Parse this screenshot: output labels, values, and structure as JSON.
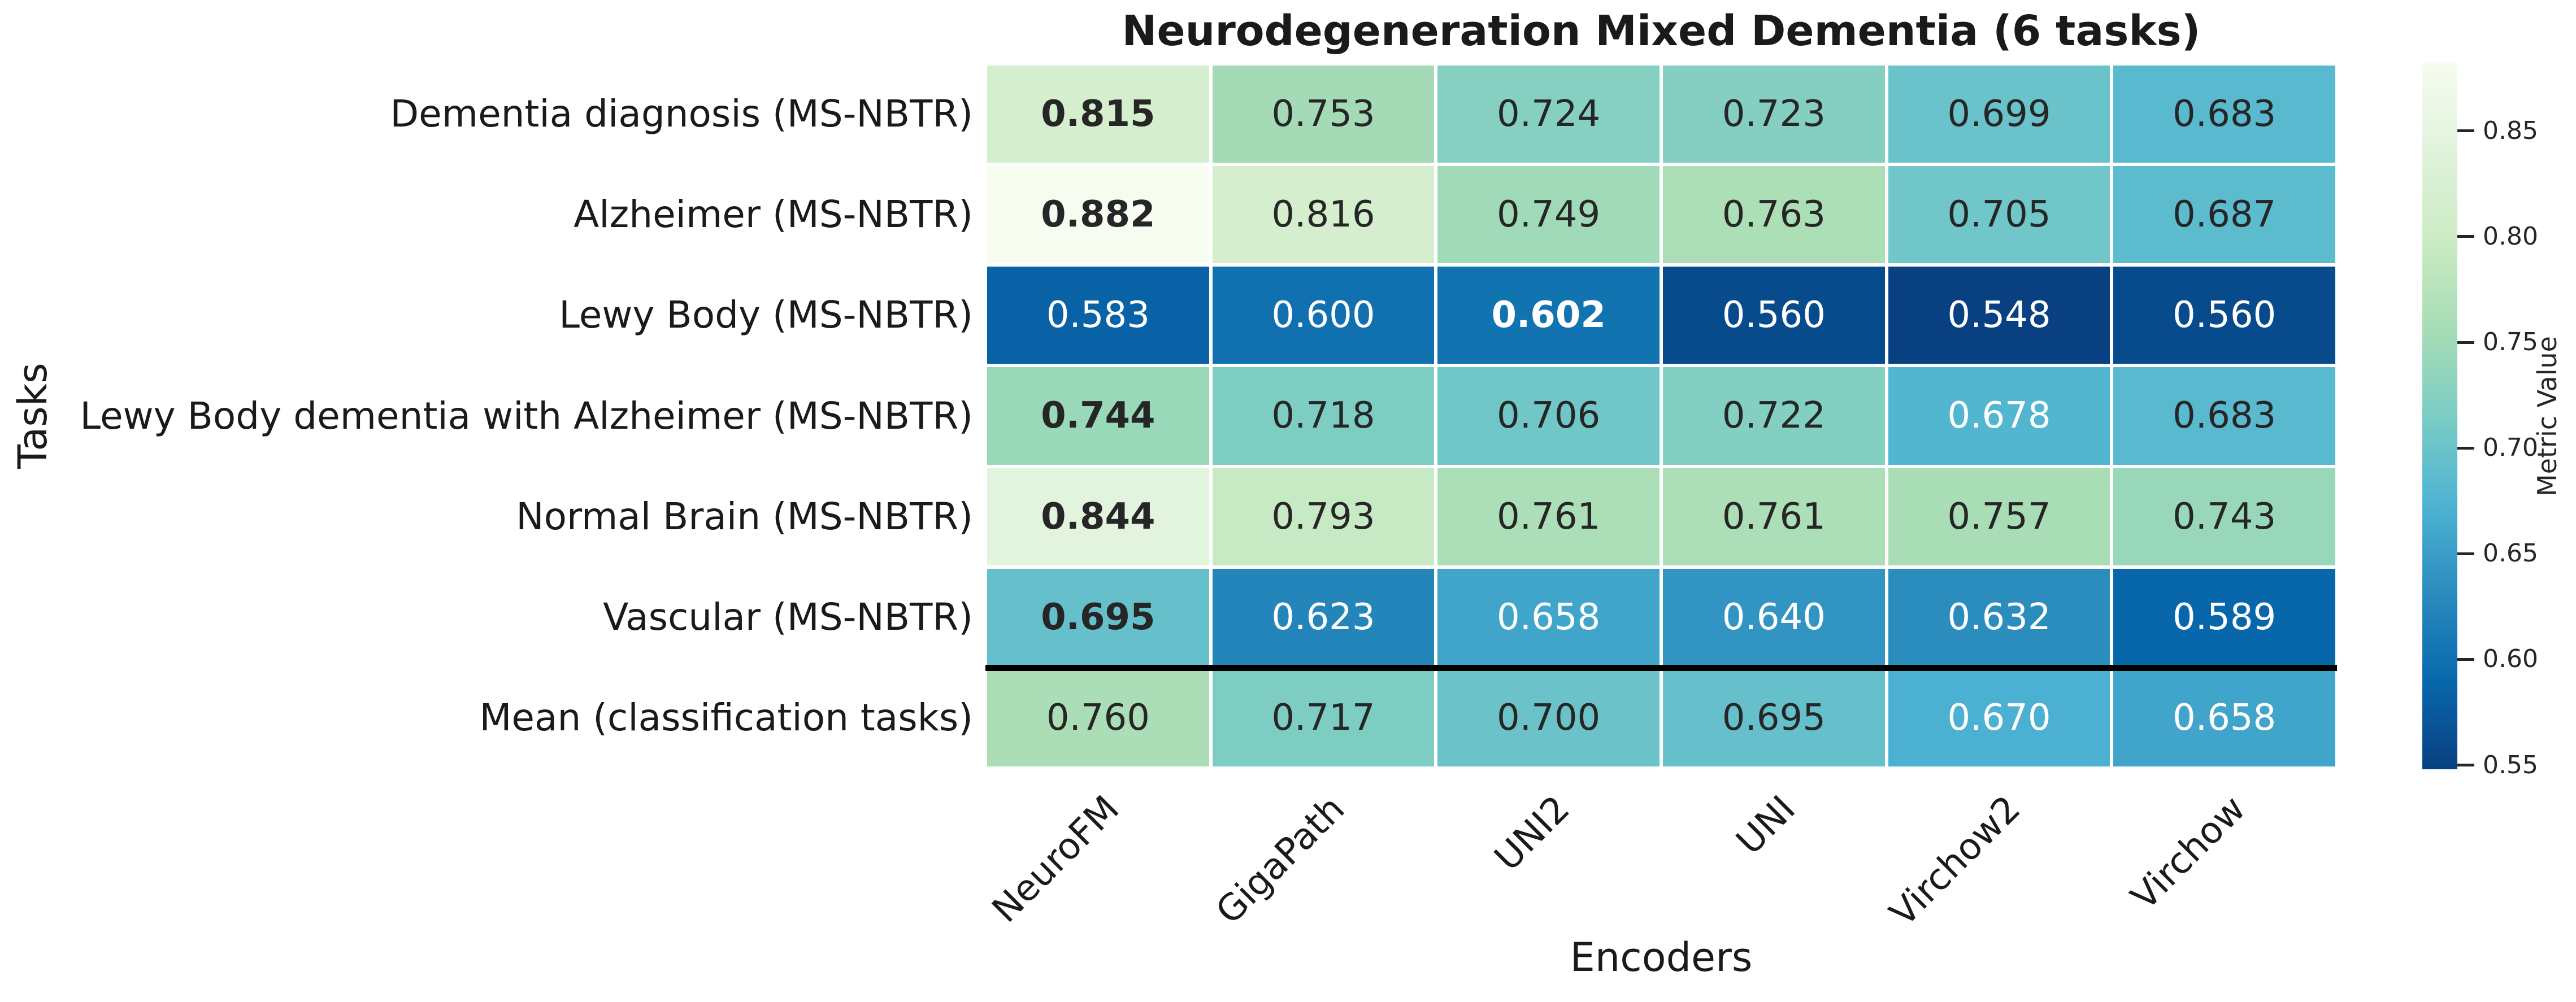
{
  "chart_data": {
    "type": "heatmap",
    "title": "Neurodegeneration Mixed Dementia (6 tasks)",
    "xlabel": "Encoders",
    "ylabel": "Tasks",
    "columns": [
      "NeuroFM",
      "GigaPath",
      "UNI2",
      "UNI",
      "Virchow2",
      "Virchow"
    ],
    "rows": [
      "Dementia diagnosis (MS-NBTR)",
      "Alzheimer (MS-NBTR)",
      "Lewy Body (MS-NBTR)",
      "Lewy Body dementia with Alzheimer (MS-NBTR)",
      "Normal Brain (MS-NBTR)",
      "Vascular (MS-NBTR)",
      "Mean (classification tasks)"
    ],
    "values": [
      [
        0.815,
        0.753,
        0.724,
        0.723,
        0.699,
        0.683
      ],
      [
        0.882,
        0.816,
        0.749,
        0.763,
        0.705,
        0.687
      ],
      [
        0.583,
        0.6,
        0.602,
        0.56,
        0.548,
        0.56
      ],
      [
        0.744,
        0.718,
        0.706,
        0.722,
        0.678,
        0.683
      ],
      [
        0.844,
        0.793,
        0.761,
        0.761,
        0.757,
        0.743
      ],
      [
        0.695,
        0.623,
        0.658,
        0.64,
        0.632,
        0.589
      ],
      [
        0.76,
        0.717,
        0.7,
        0.695,
        0.67,
        0.658
      ]
    ],
    "bold_cells": [
      [
        0,
        0
      ],
      [
        1,
        0
      ],
      [
        2,
        2
      ],
      [
        3,
        0
      ],
      [
        4,
        0
      ],
      [
        5,
        0
      ]
    ],
    "separator_above_row": 6,
    "value_format_decimals": 3,
    "grid": false,
    "legend_position": "right-colorbar",
    "colorbar": {
      "label": "Metric Value",
      "ticks": [
        0.85,
        0.8,
        0.75,
        0.7,
        0.65,
        0.6,
        0.55
      ],
      "vmin": 0.548,
      "vmax": 0.882
    },
    "colormap": {
      "name": "GnBu (high=light, low=dark)",
      "anchors": [
        "#f7fcf0",
        "#e0f3db",
        "#ccebc5",
        "#a8ddb5",
        "#7bccc4",
        "#4eb3d3",
        "#2b8cbe",
        "#0868ac",
        "#084081"
      ]
    },
    "text_colors": {
      "dark": "#262626",
      "light": "#ffffff"
    }
  }
}
